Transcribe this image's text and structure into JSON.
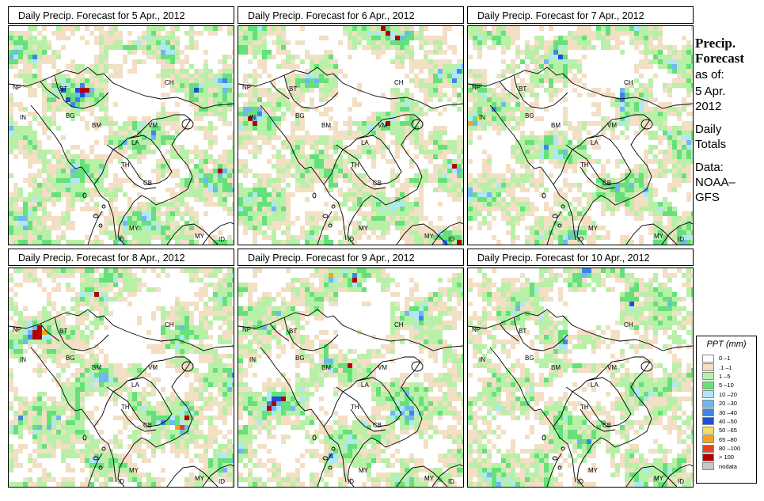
{
  "panels": [
    {
      "title": "Daily Precip. Forecast for  5 Apr., 2012",
      "seed": 11
    },
    {
      "title": "Daily Precip. Forecast for  6 Apr., 2012",
      "seed": 23
    },
    {
      "title": "Daily Precip. Forecast for  7 Apr., 2012",
      "seed": 37
    },
    {
      "title": "Daily Precip. Forecast for  8 Apr., 2012",
      "seed": 41
    },
    {
      "title": "Daily Precip. Forecast for  9 Apr., 2012",
      "seed": 53
    },
    {
      "title": "Daily Precip. Forecast for  10 Apr., 2012",
      "seed": 67
    }
  ],
  "map_labels": [
    "NP",
    "BT",
    "CH",
    "IN",
    "BG",
    "BM",
    "VM",
    "LA",
    "TH",
    "CB",
    "MY",
    "ID",
    "MY",
    "ID"
  ],
  "sidebar": {
    "heading_line1": "Precip.",
    "heading_line2": "Forecast",
    "asof_label": "as of:",
    "date_line1": "5 Apr.",
    "date_line2": "2012",
    "totals_line1": "Daily",
    "totals_line2": "Totals",
    "data_label": "Data:",
    "source_line1": "NOAA–",
    "source_line2": "GFS"
  },
  "legend": {
    "title": "PPT (mm)",
    "classes": [
      {
        "label": "0 –1",
        "color": "#ffffff"
      },
      {
        "label": ".1 –1",
        "color": "#f2dfc4"
      },
      {
        "label": "1 –5",
        "color": "#b8f0a8"
      },
      {
        "label": "5 –10",
        "color": "#66e07a"
      },
      {
        "label": "10 –20",
        "color": "#aee8f5"
      },
      {
        "label": "20 –30",
        "color": "#6fb8ef"
      },
      {
        "label": "30 –40",
        "color": "#3f84e6"
      },
      {
        "label": "40 –50",
        "color": "#1f4fd6"
      },
      {
        "label": "50 –65",
        "color": "#f5e15a"
      },
      {
        "label": "65 –80",
        "color": "#f5a41f"
      },
      {
        "label": "80 –100",
        "color": "#e8421a"
      },
      {
        "label": "> 100",
        "color": "#b30000"
      },
      {
        "label": "nodata",
        "color": "#c8c8c8"
      }
    ]
  }
}
